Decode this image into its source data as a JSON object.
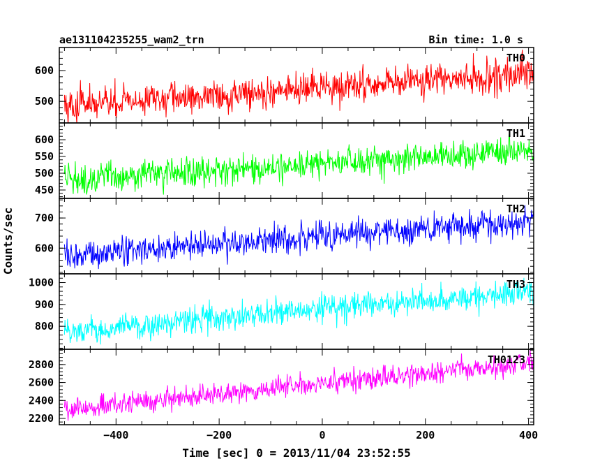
{
  "chart_data": {
    "type": "line",
    "title": "ae131104235255_wam2_trn",
    "subtitle": "Bin time: 1.0 s",
    "xlabel": "Time [sec] 0 = 2013/11/04 23:52:55",
    "ylabel": "Counts/sec",
    "xlim": [
      -510,
      410
    ],
    "x_range_data": [
      -500,
      410
    ],
    "x_ticks": [
      -400,
      -200,
      0,
      200,
      400
    ],
    "x_tick_labels": [
      "−400",
      "−200",
      "0",
      "200",
      "400"
    ],
    "grid": false,
    "panels": [
      {
        "name": "TH0",
        "color": "#ff0000",
        "ylim": [
          430,
          675
        ],
        "y_ticks": [
          500,
          600
        ],
        "y_tick_labels": [
          "500",
          "600"
        ],
        "trend_start": 485,
        "trend_end": 590,
        "noise": 30
      },
      {
        "name": "TH1",
        "color": "#00ff00",
        "ylim": [
          425,
          650
        ],
        "y_ticks": [
          450,
          500,
          550,
          600
        ],
        "y_tick_labels": [
          "450",
          "500",
          "550",
          "600"
        ],
        "trend_start": 480,
        "trend_end": 570,
        "noise": 26
      },
      {
        "name": "TH2",
        "color": "#0000ff",
        "ylim": [
          515,
          765
        ],
        "y_ticks": [
          600,
          700
        ],
        "y_tick_labels": [
          "600",
          "700"
        ],
        "trend_start": 575,
        "trend_end": 690,
        "noise": 28
      },
      {
        "name": "TH3",
        "color": "#00ffff",
        "ylim": [
          695,
          1040
        ],
        "y_ticks": [
          800,
          900,
          1000
        ],
        "y_tick_labels": [
          "800",
          "900",
          "1000"
        ],
        "trend_start": 775,
        "trend_end": 960,
        "noise": 35
      },
      {
        "name": "TH0123",
        "color": "#ff00ff",
        "ylim": [
          2130,
          2970
        ],
        "y_ticks": [
          2200,
          2400,
          2600,
          2800
        ],
        "y_tick_labels": [
          "2200",
          "2400",
          "2600",
          "2800"
        ],
        "trend_start": 2300,
        "trend_end": 2830,
        "noise": 70
      }
    ]
  }
}
